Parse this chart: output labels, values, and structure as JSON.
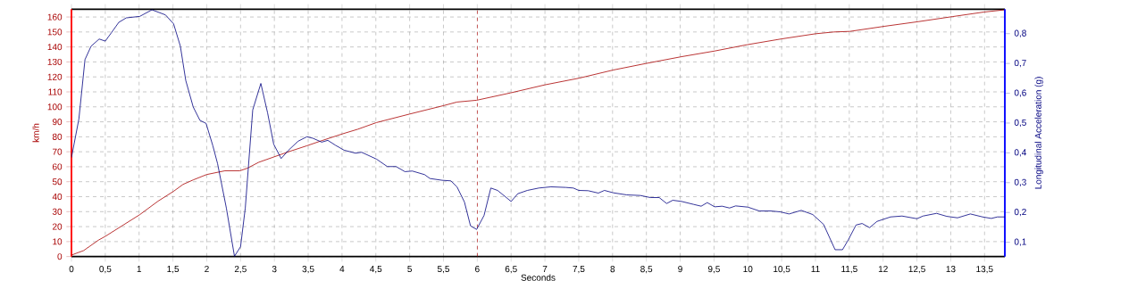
{
  "chart_data": {
    "type": "line",
    "xlabel": "Seconds",
    "ylabel": "km/h",
    "y2label": "Longitudinal Acceleration (g)",
    "xlim": [
      0,
      13.8
    ],
    "ylim": [
      0,
      165.2
    ],
    "y2lim": [
      0.052,
      0.882
    ],
    "xticks": [
      0,
      {
        "value": 0.5,
        "label": "0,5"
      },
      1,
      {
        "value": 1.5,
        "label": "1,5"
      },
      2,
      {
        "value": 2.5,
        "label": "2,5"
      },
      3,
      {
        "value": 3.5,
        "label": "3,5"
      },
      4,
      {
        "value": 4.5,
        "label": "4,5"
      },
      5,
      {
        "value": 5.5,
        "label": "5,5"
      },
      6,
      {
        "value": 6.5,
        "label": "6,5"
      },
      7,
      {
        "value": 7.5,
        "label": "7,5"
      },
      8,
      {
        "value": 8.5,
        "label": "8,5"
      },
      9,
      {
        "value": 9.5,
        "label": "9,5"
      },
      10,
      {
        "value": 10.5,
        "label": "10,5"
      },
      11,
      {
        "value": 11.5,
        "label": "11,5"
      },
      12,
      {
        "value": 12.5,
        "label": "12,5"
      },
      13,
      {
        "value": 13.5,
        "label": "13,5"
      }
    ],
    "yticks": [
      0,
      10,
      20,
      30,
      40,
      50,
      60,
      70,
      80,
      90,
      100,
      110,
      120,
      130,
      140,
      150,
      160
    ],
    "y2ticks": [
      {
        "value": 0.1,
        "label": "0,1"
      },
      {
        "value": 0.2,
        "label": "0,2"
      },
      {
        "value": 0.3,
        "label": "0,3"
      },
      {
        "value": 0.4,
        "label": "0,4"
      },
      {
        "value": 0.5,
        "label": "0,5"
      },
      {
        "value": 0.6,
        "label": "0,6"
      },
      {
        "value": 0.7,
        "label": "0,7"
      },
      {
        "value": 0.8,
        "label": "0,8"
      }
    ],
    "grid": true,
    "ref_lines": [
      {
        "axis": "x",
        "value": 6,
        "color": "#c00000",
        "line_style": "dashed"
      }
    ],
    "series": [
      {
        "color": "#a80000",
        "x": [
          0,
          0.18,
          0.4,
          0.5,
          1.01,
          1.28,
          1.51,
          1.65,
          1.8,
          2.0,
          2.27,
          2.49,
          2.6,
          2.77,
          2.99,
          3.21,
          3.48,
          3.7,
          4.01,
          4.23,
          4.51,
          5.0,
          5.5,
          5.7,
          5.99,
          6.49,
          7.0,
          7.51,
          8.01,
          8.52,
          9.02,
          9.51,
          9.99,
          10.5,
          11.0,
          11.27,
          11.51,
          12.02,
          12.52,
          13.03,
          13.49,
          13.8
        ],
        "values": [
          1,
          4,
          11,
          13.5,
          28,
          37,
          43.6,
          48.2,
          51.2,
          54.8,
          57.3,
          57.3,
          59,
          63,
          66.5,
          70,
          74,
          77.4,
          82,
          85,
          89.5,
          95.2,
          100.8,
          103.2,
          104.4,
          109.3,
          114.7,
          119.2,
          124.6,
          129.2,
          133.5,
          137.3,
          141.5,
          145.4,
          148.8,
          150,
          150.4,
          153.8,
          156.9,
          160.3,
          163.3,
          164.8
        ]
      },
      {
        "color": "#000080",
        "axis": "y2",
        "x": [
          0,
          0.11,
          0.2,
          0.29,
          0.41,
          0.5,
          0.59,
          0.7,
          0.81,
          1.01,
          1.19,
          1.39,
          1.51,
          1.61,
          1.69,
          1.8,
          1.9,
          1.99,
          2.09,
          2.16,
          2.29,
          2.41,
          2.5,
          2.57,
          2.68,
          2.8,
          2.9,
          2.99,
          3.1,
          3.21,
          3.35,
          3.48,
          3.57,
          3.7,
          3.79,
          3.9,
          4.03,
          4.2,
          4.29,
          4.51,
          4.67,
          4.8,
          4.93,
          5.04,
          5.22,
          5.3,
          5.48,
          5.61,
          5.7,
          5.81,
          5.9,
          5.99,
          6.1,
          6.2,
          6.3,
          6.5,
          6.6,
          6.74,
          6.91,
          7.09,
          7.31,
          7.42,
          7.5,
          7.64,
          7.79,
          7.88,
          8.01,
          8.21,
          8.41,
          8.56,
          8.69,
          8.8,
          8.89,
          9.02,
          9.2,
          9.31,
          9.4,
          9.51,
          9.62,
          9.73,
          9.82,
          10.0,
          10.17,
          10.34,
          10.48,
          10.61,
          10.79,
          10.96,
          11.12,
          11.2,
          11.29,
          11.4,
          11.49,
          11.6,
          11.69,
          11.8,
          11.91,
          12.11,
          12.28,
          12.5,
          12.59,
          12.79,
          12.94,
          13.1,
          13.29,
          13.47,
          13.6,
          13.69,
          13.8
        ],
        "values": [
          0.384,
          0.514,
          0.713,
          0.758,
          0.782,
          0.775,
          0.803,
          0.838,
          0.853,
          0.858,
          0.88,
          0.863,
          0.833,
          0.758,
          0.643,
          0.554,
          0.509,
          0.499,
          0.424,
          0.364,
          0.215,
          0.053,
          0.085,
          0.215,
          0.544,
          0.633,
          0.534,
          0.429,
          0.381,
          0.409,
          0.439,
          0.454,
          0.449,
          0.436,
          0.442,
          0.426,
          0.409,
          0.399,
          0.402,
          0.379,
          0.354,
          0.354,
          0.337,
          0.339,
          0.327,
          0.314,
          0.308,
          0.306,
          0.286,
          0.235,
          0.155,
          0.143,
          0.19,
          0.282,
          0.274,
          0.237,
          0.263,
          0.274,
          0.282,
          0.286,
          0.284,
          0.282,
          0.274,
          0.273,
          0.265,
          0.274,
          0.266,
          0.259,
          0.257,
          0.25,
          0.25,
          0.23,
          0.241,
          0.237,
          0.227,
          0.221,
          0.233,
          0.219,
          0.221,
          0.215,
          0.222,
          0.218,
          0.205,
          0.205,
          0.202,
          0.195,
          0.207,
          0.193,
          0.16,
          0.12,
          0.075,
          0.075,
          0.11,
          0.158,
          0.163,
          0.149,
          0.17,
          0.185,
          0.188,
          0.179,
          0.188,
          0.197,
          0.187,
          0.182,
          0.195,
          0.185,
          0.18,
          0.185,
          0.185
        ]
      }
    ]
  }
}
